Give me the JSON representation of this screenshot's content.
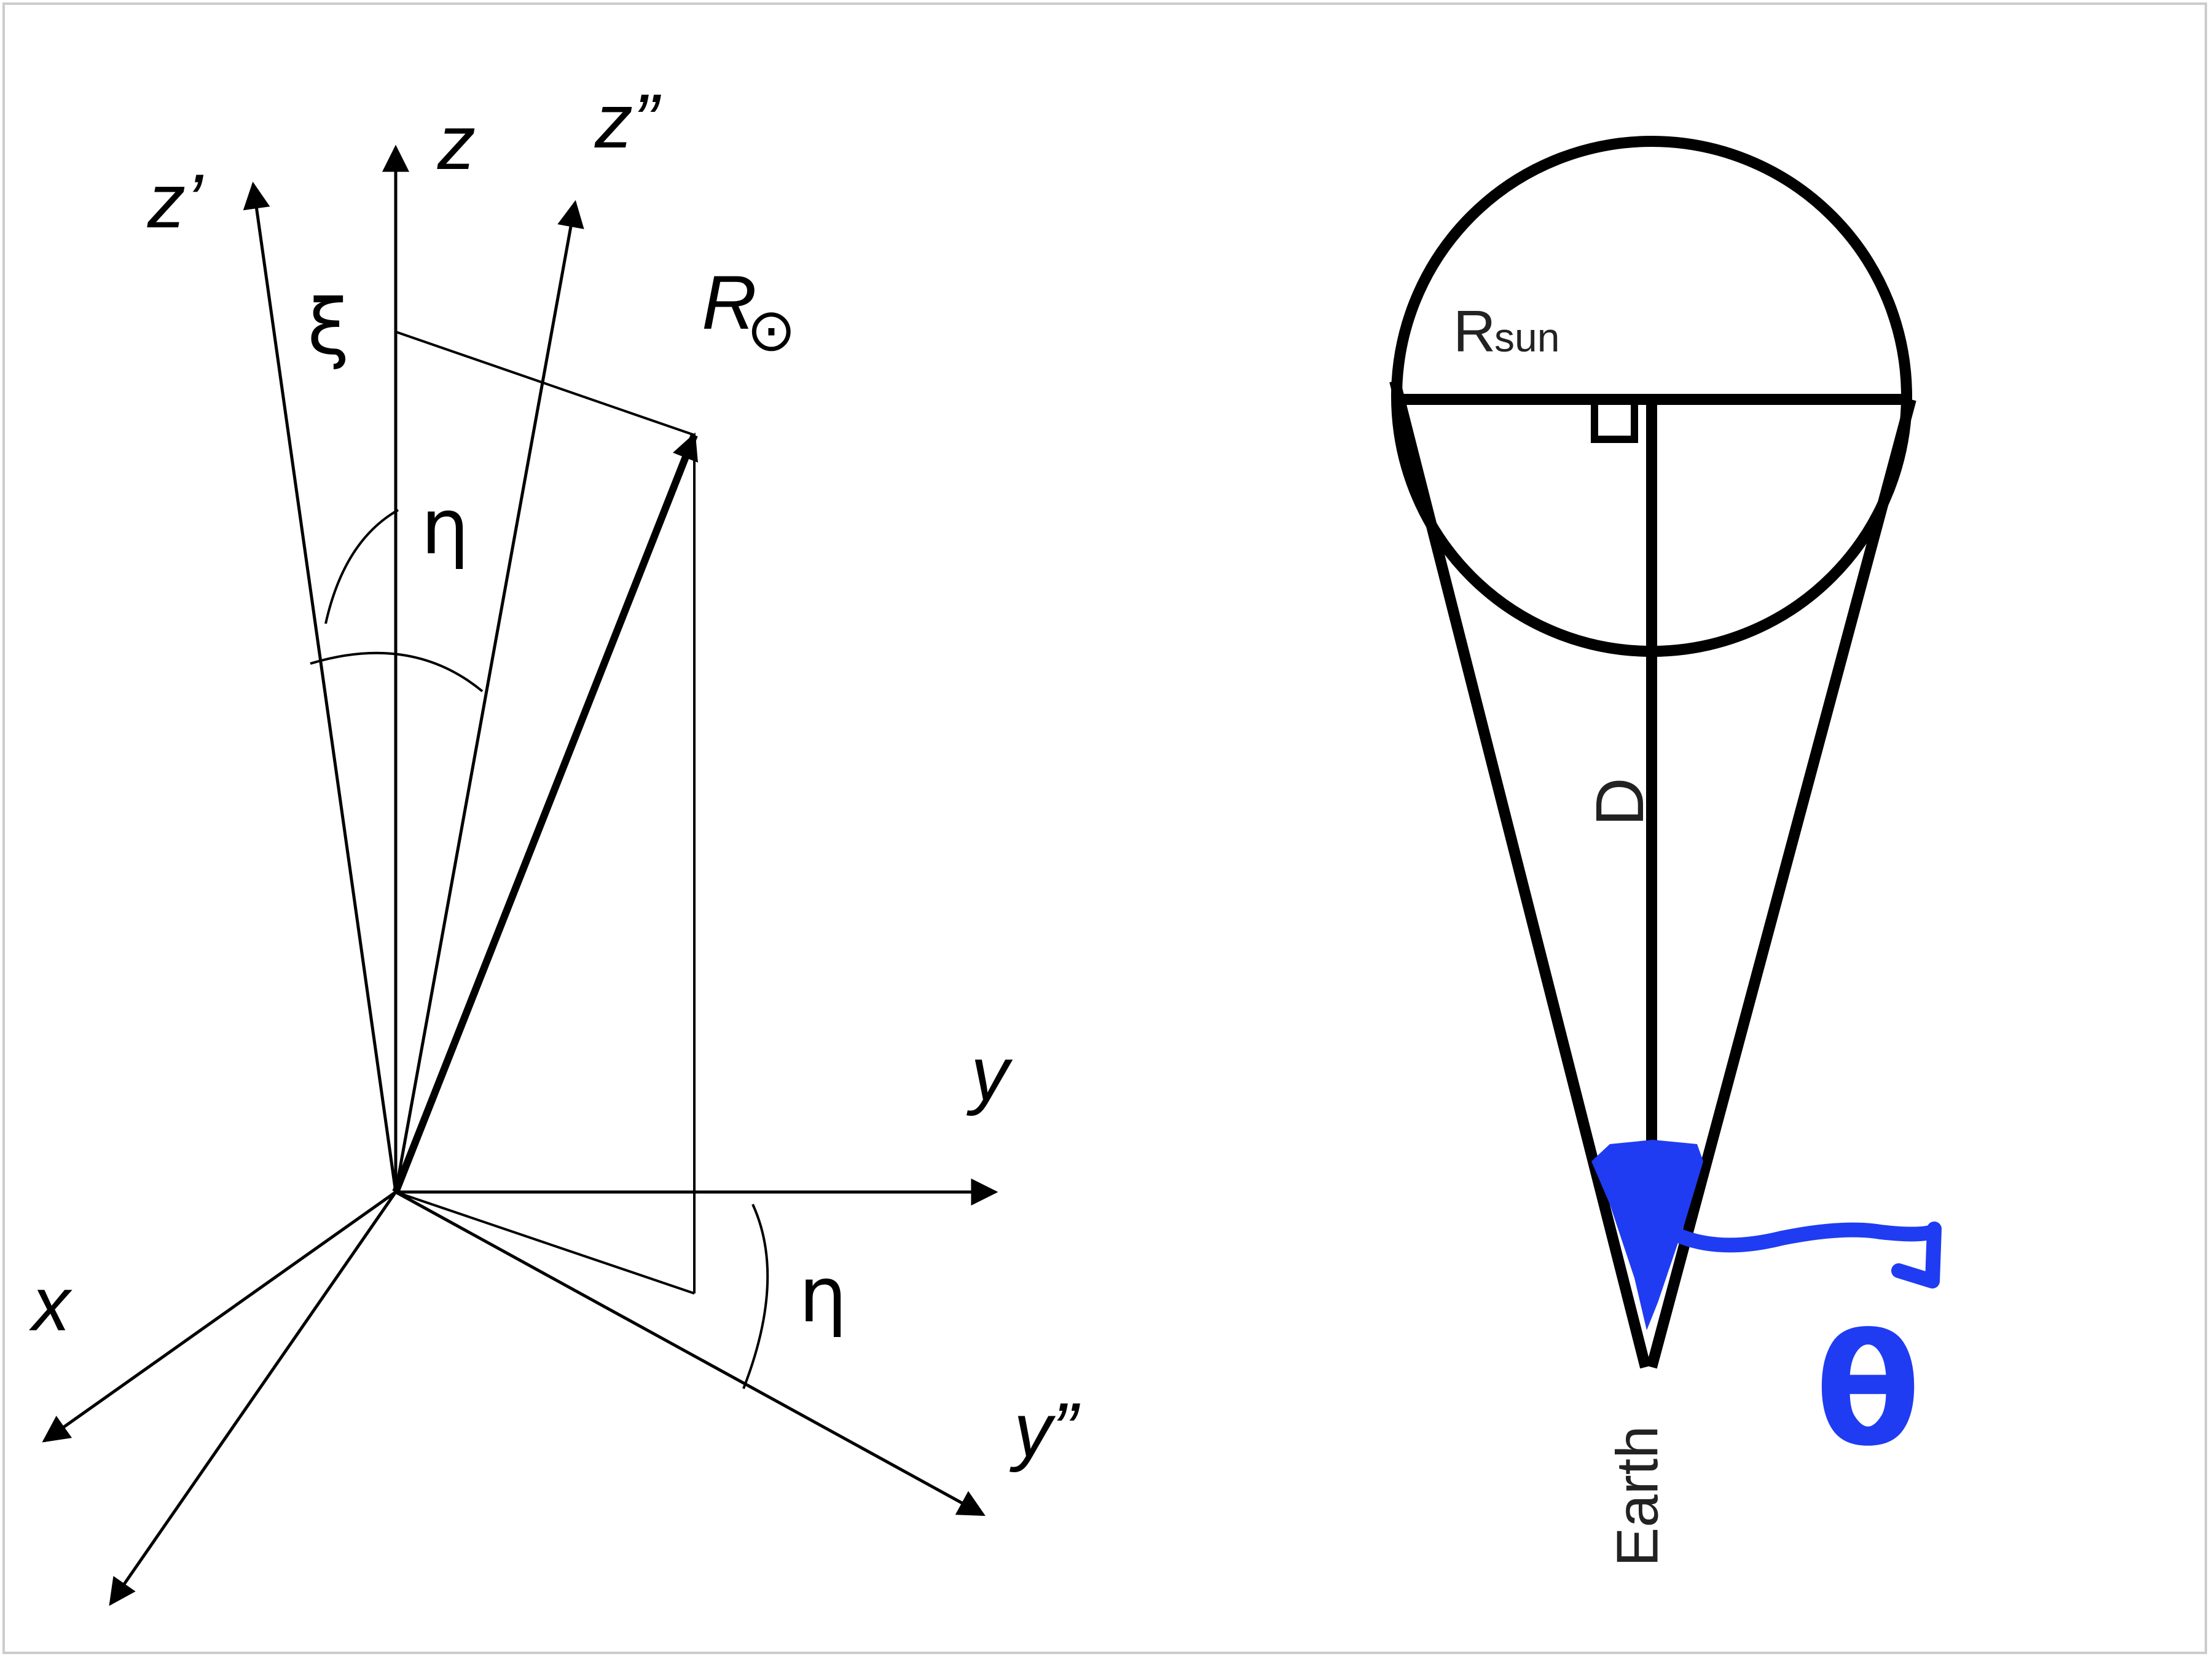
{
  "left_diagram": {
    "axis_labels": {
      "z_prime": "z’",
      "z": "z",
      "z_double_prime": "z”",
      "y": "y",
      "y_double_prime": "y”",
      "x": "x"
    },
    "angle_labels": {
      "xi": "ξ",
      "eta_top": "η",
      "eta_bottom": "η"
    },
    "vector_label": {
      "letter": "R",
      "subscript_symbol": "⊙"
    }
  },
  "right_diagram": {
    "labels": {
      "r_main": "R",
      "r_sub": "sun",
      "distance": "D",
      "earth": "Earth",
      "theta": "θ"
    },
    "colors": {
      "highlight": "#1f3cf2"
    }
  }
}
